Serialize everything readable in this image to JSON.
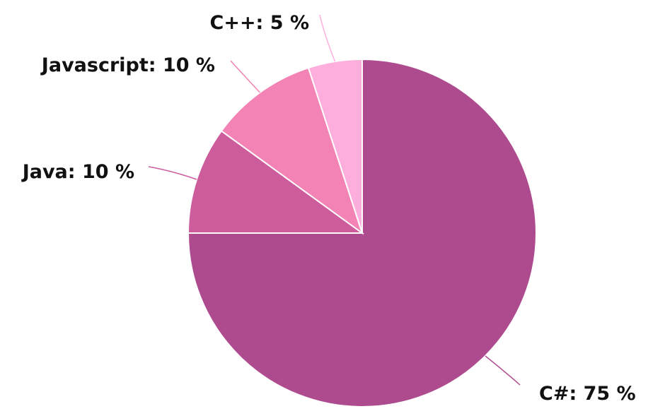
{
  "chart_data": {
    "type": "pie",
    "start_angle_deg": 0,
    "direction": "clockwise",
    "slices": [
      {
        "label": "C#",
        "value": 75,
        "color": "#ae4b8f",
        "display": "C#: 75 %"
      },
      {
        "label": "Java",
        "value": 10,
        "color": "#cd5c9d",
        "display": "Java: 10 %"
      },
      {
        "label": "Javascript",
        "value": 10,
        "color": "#f283b4",
        "display": "Javascript: 10 %"
      },
      {
        "label": "C++",
        "value": 5,
        "color": "#fdaedc",
        "display": "C++: 5 %"
      }
    ]
  }
}
